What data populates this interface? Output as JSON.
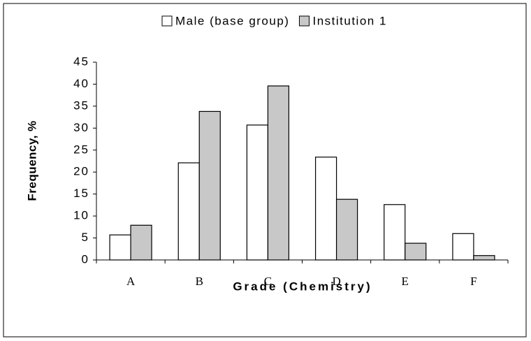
{
  "chart_data": {
    "type": "bar",
    "categories": [
      "A",
      "B",
      "C",
      "D",
      "E",
      "F"
    ],
    "series": [
      {
        "name": "Male (base group)",
        "color": "#ffffff",
        "values": [
          5.7,
          22.1,
          30.7,
          23.4,
          12.6,
          6.0
        ]
      },
      {
        "name": "Institution 1",
        "color": "#c8c8c8",
        "values": [
          7.9,
          33.8,
          39.6,
          13.8,
          3.8,
          1.0
        ]
      }
    ],
    "x_label": "Grade (Chemistry)",
    "y_label": "Frequency, %",
    "ylim": [
      0,
      45
    ],
    "yticks": [
      0,
      5,
      10,
      15,
      20,
      25,
      30,
      35,
      40,
      45
    ],
    "legend": "top"
  }
}
